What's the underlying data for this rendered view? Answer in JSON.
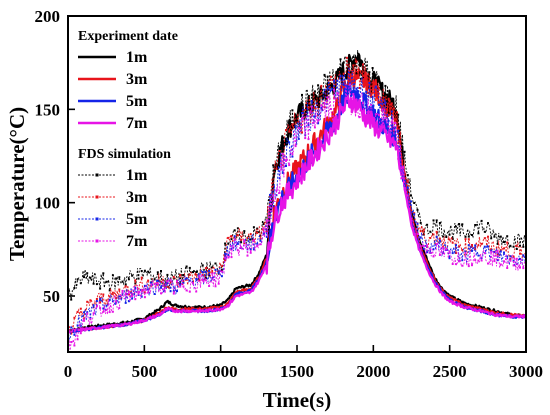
{
  "chart_data": {
    "type": "line",
    "xlabel": "Time(s)",
    "ylabel": "Temperature(°C)",
    "xlim": [
      0,
      3000
    ],
    "ylim": [
      20,
      200
    ],
    "xticks": [
      0,
      500,
      1000,
      1500,
      2000,
      2500,
      3000
    ],
    "yticks": [
      50,
      100,
      150,
      200
    ],
    "grid": false,
    "legend_position": "top-left",
    "legend_groups": [
      {
        "heading": "Experiment date",
        "entries": [
          "1m",
          "3m",
          "5m",
          "7m"
        ]
      },
      {
        "heading": "FDS simulation",
        "entries": [
          "1m",
          "3m",
          "5m",
          "7m"
        ]
      }
    ],
    "colors": [
      "#000000",
      "#e8141b",
      "#1424e8",
      "#e614e6"
    ],
    "series_x": [
      0,
      100,
      200,
      300,
      400,
      500,
      600,
      650,
      700,
      800,
      900,
      1000,
      1050,
      1100,
      1200,
      1250,
      1300,
      1350,
      1400,
      1450,
      1500,
      1550,
      1600,
      1650,
      1700,
      1750,
      1800,
      1850,
      1900,
      1950,
      2000,
      2050,
      2100,
      2150,
      2200,
      2250,
      2300,
      2350,
      2400,
      2450,
      2500,
      2600,
      2700,
      2800,
      2900,
      3000
    ],
    "series": [
      {
        "name": "1m",
        "group": "Experiment date",
        "values": [
          31,
          33,
          34,
          35,
          36,
          38,
          43,
          47,
          45,
          44,
          44,
          45,
          48,
          54,
          56,
          62,
          72,
          118,
          130,
          140,
          146,
          150,
          153,
          156,
          160,
          164,
          170,
          174,
          180,
          168,
          165,
          160,
          155,
          152,
          118,
          95,
          80,
          70,
          60,
          54,
          50,
          46,
          44,
          42,
          40,
          39
        ]
      },
      {
        "name": "3m",
        "group": "Experiment date",
        "values": [
          31,
          32,
          33,
          34,
          35,
          37,
          41,
          44,
          43,
          43,
          43,
          44,
          46,
          52,
          54,
          60,
          70,
          95,
          105,
          112,
          118,
          124,
          130,
          136,
          142,
          148,
          160,
          168,
          166,
          165,
          162,
          156,
          150,
          145,
          115,
          92,
          78,
          68,
          59,
          53,
          49,
          45,
          43,
          41,
          40,
          39
        ]
      },
      {
        "name": "5m",
        "group": "Experiment date",
        "values": [
          31,
          32,
          33,
          34,
          35,
          37,
          40,
          43,
          42,
          42,
          42,
          43,
          45,
          51,
          53,
          59,
          68,
          92,
          102,
          108,
          114,
          120,
          126,
          132,
          138,
          144,
          154,
          160,
          158,
          152,
          148,
          143,
          138,
          135,
          112,
          90,
          76,
          66,
          58,
          52,
          48,
          44,
          42,
          40,
          39,
          39
        ]
      },
      {
        "name": "7m",
        "group": "Experiment date",
        "values": [
          31,
          32,
          33,
          34,
          35,
          37,
          40,
          43,
          42,
          42,
          42,
          43,
          45,
          50,
          52,
          58,
          67,
          90,
          100,
          106,
          112,
          118,
          124,
          130,
          136,
          142,
          150,
          155,
          152,
          146,
          142,
          138,
          134,
          130,
          110,
          88,
          75,
          65,
          57,
          51,
          47,
          44,
          42,
          40,
          39,
          39
        ]
      },
      {
        "name": "1m",
        "group": "FDS simulation",
        "values": [
          50,
          60,
          58,
          57,
          60,
          62,
          60,
          58,
          60,
          62,
          64,
          66,
          80,
          82,
          82,
          84,
          90,
          115,
          130,
          140,
          148,
          152,
          155,
          158,
          162,
          166,
          172,
          178,
          175,
          170,
          165,
          160,
          155,
          150,
          125,
          105,
          90,
          85,
          88,
          86,
          85,
          84,
          88,
          82,
          80,
          79
        ]
      },
      {
        "name": "3m",
        "group": "FDS simulation",
        "values": [
          32,
          42,
          48,
          50,
          54,
          56,
          58,
          58,
          57,
          60,
          62,
          64,
          80,
          82,
          81,
          83,
          88,
          112,
          125,
          135,
          142,
          148,
          152,
          156,
          160,
          164,
          168,
          170,
          168,
          166,
          162,
          156,
          150,
          145,
          118,
          98,
          86,
          80,
          82,
          80,
          78,
          76,
          79,
          76,
          74,
          74
        ]
      },
      {
        "name": "5m",
        "group": "FDS simulation",
        "values": [
          30,
          38,
          44,
          47,
          51,
          54,
          56,
          56,
          55,
          58,
          60,
          62,
          76,
          78,
          78,
          80,
          86,
          108,
          120,
          130,
          138,
          144,
          148,
          152,
          156,
          160,
          162,
          164,
          162,
          158,
          155,
          150,
          145,
          140,
          115,
          95,
          82,
          76,
          78,
          76,
          74,
          72,
          75,
          72,
          70,
          70
        ]
      },
      {
        "name": "7m",
        "group": "FDS simulation",
        "values": [
          22,
          36,
          42,
          46,
          50,
          53,
          55,
          55,
          54,
          56,
          58,
          60,
          74,
          76,
          76,
          78,
          84,
          104,
          116,
          126,
          134,
          140,
          144,
          148,
          150,
          152,
          154,
          156,
          154,
          150,
          147,
          143,
          140,
          136,
          112,
          92,
          80,
          74,
          75,
          73,
          71,
          70,
          72,
          70,
          68,
          68
        ]
      }
    ]
  }
}
